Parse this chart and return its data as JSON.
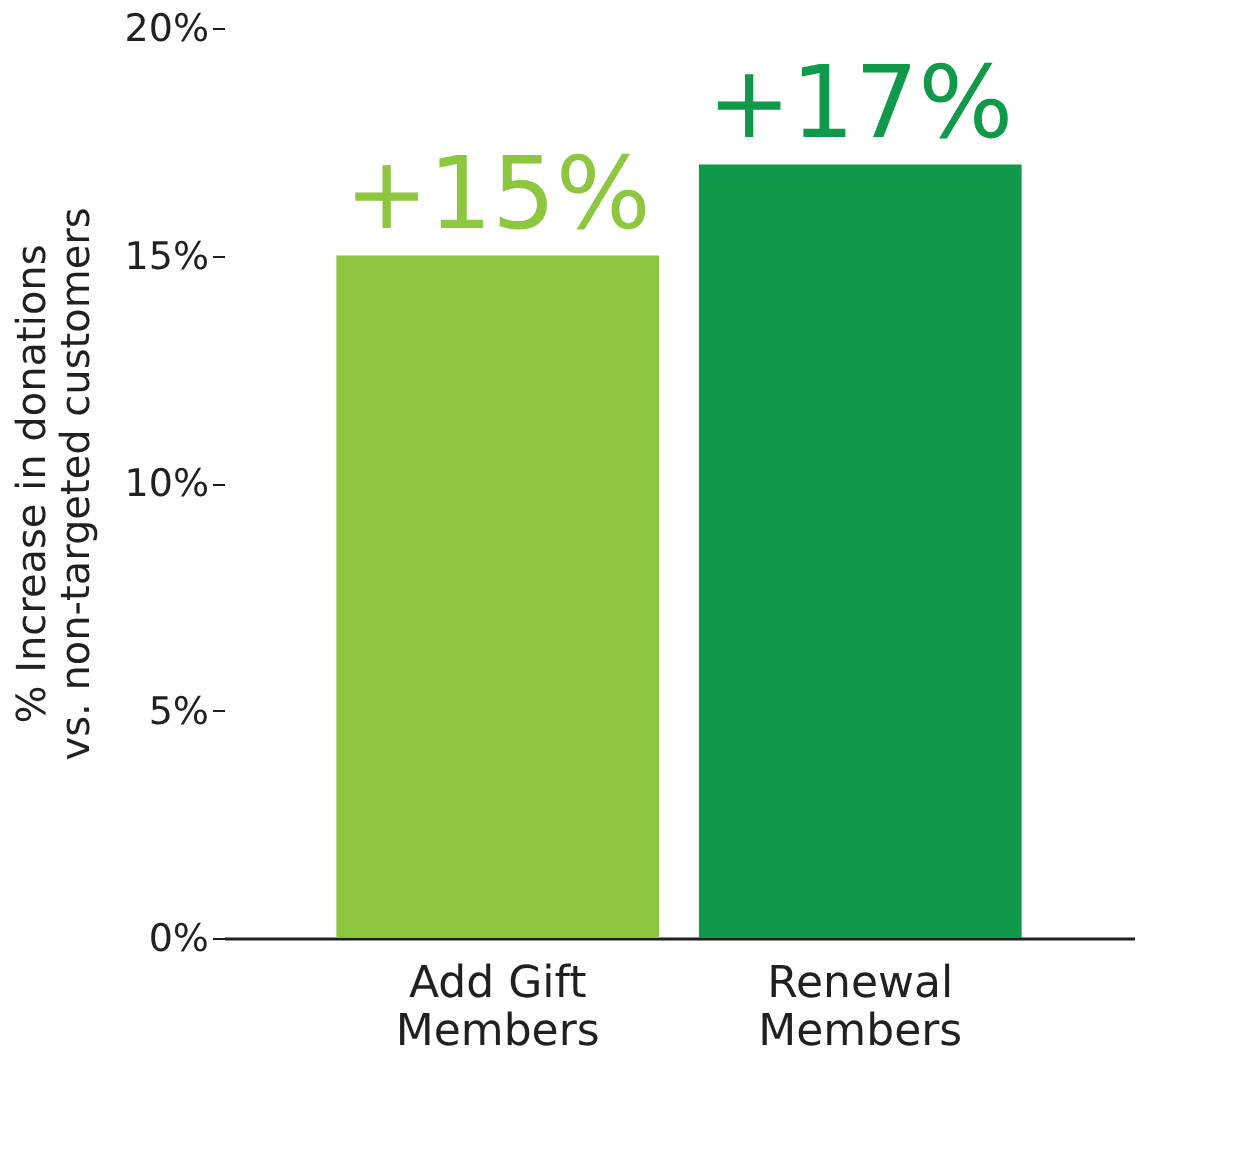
{
  "chart_data": {
    "type": "bar",
    "ylabel": "% Increase in donations vs. non-targeted customers",
    "categories": [
      "Add Gift Members",
      "Renewal Members"
    ],
    "values": [
      15,
      17
    ],
    "colors": [
      "#8dc63f",
      "#10994a"
    ],
    "value_labels": [
      "+15%",
      "+17%"
    ],
    "ylim": [
      0,
      20
    ],
    "yticks": [
      {
        "value": 0,
        "label": "0%"
      },
      {
        "value": 5,
        "label": "5%"
      },
      {
        "value": 10,
        "label": "10%"
      },
      {
        "value": 15,
        "label": "15%"
      },
      {
        "value": 20,
        "label": "20%"
      }
    ],
    "grid": false
  }
}
